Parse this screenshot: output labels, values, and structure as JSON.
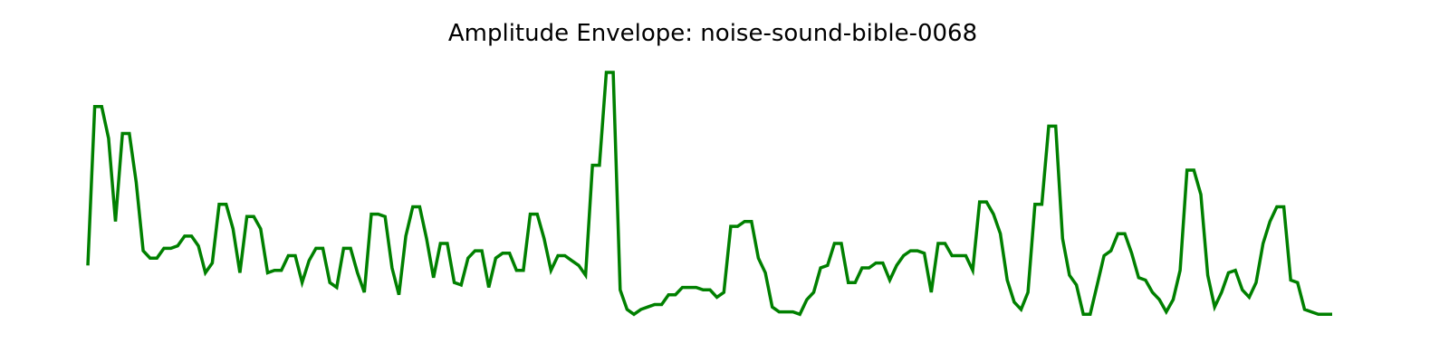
{
  "chart_data": {
    "type": "line",
    "title": "Amplitude Envelope: noise-sound-bible-0068",
    "xlabel": "",
    "ylabel": "",
    "axes_visible": false,
    "grid": false,
    "xlim": [
      0,
      180
    ],
    "ylim": [
      0,
      1
    ],
    "series": [
      {
        "name": "amplitude envelope",
        "color": "#008000",
        "x": [
          0,
          1,
          2,
          3,
          4,
          5,
          6,
          7,
          8,
          9,
          10,
          11,
          12,
          13,
          14,
          15,
          16,
          17,
          18,
          19,
          20,
          21,
          22,
          23,
          24,
          25,
          26,
          27,
          28,
          29,
          30,
          31,
          32,
          33,
          34,
          35,
          36,
          37,
          38,
          39,
          40,
          41,
          42,
          43,
          44,
          45,
          46,
          47,
          48,
          49,
          50,
          51,
          52,
          53,
          54,
          55,
          56,
          57,
          58,
          59,
          60,
          61,
          62,
          63,
          64,
          65,
          66,
          67,
          68,
          69,
          70,
          71,
          72,
          73,
          74,
          75,
          76,
          77,
          78,
          79,
          80,
          81,
          82,
          83,
          84,
          85,
          86,
          87,
          88,
          89,
          90,
          91,
          92,
          93,
          94,
          95,
          96,
          97,
          98,
          99,
          100,
          101,
          102,
          103,
          104,
          105,
          106,
          107,
          108,
          109,
          110,
          111,
          112,
          113,
          114,
          115,
          116,
          117,
          118,
          119,
          120,
          121,
          122,
          123,
          124,
          125,
          126,
          127,
          128,
          129,
          130,
          131,
          132,
          133,
          134,
          135,
          136,
          137,
          138,
          139,
          140,
          141,
          142,
          143,
          144,
          145,
          146,
          147,
          148,
          149,
          150,
          151,
          152,
          153,
          154,
          155,
          156,
          157,
          158,
          159,
          160,
          161,
          162,
          163,
          164,
          165,
          166,
          167,
          168,
          169,
          170,
          171,
          172,
          173,
          174,
          175,
          176,
          177,
          178,
          179,
          180
        ],
        "values": [
          0.21,
          0.86,
          0.86,
          0.73,
          0.39,
          0.75,
          0.75,
          0.55,
          0.27,
          0.24,
          0.24,
          0.28,
          0.28,
          0.29,
          0.33,
          0.33,
          0.29,
          0.18,
          0.22,
          0.46,
          0.46,
          0.36,
          0.18,
          0.41,
          0.41,
          0.36,
          0.18,
          0.19,
          0.19,
          0.25,
          0.25,
          0.14,
          0.23,
          0.28,
          0.28,
          0.14,
          0.12,
          0.28,
          0.28,
          0.18,
          0.1,
          0.42,
          0.42,
          0.41,
          0.2,
          0.09,
          0.33,
          0.45,
          0.45,
          0.32,
          0.16,
          0.3,
          0.3,
          0.14,
          0.13,
          0.24,
          0.27,
          0.27,
          0.12,
          0.24,
          0.26,
          0.26,
          0.19,
          0.19,
          0.42,
          0.42,
          0.32,
          0.19,
          0.25,
          0.25,
          0.23,
          0.21,
          0.17,
          0.62,
          0.62,
          1.0,
          1.0,
          0.11,
          0.03,
          0.01,
          0.03,
          0.04,
          0.05,
          0.05,
          0.09,
          0.09,
          0.12,
          0.12,
          0.12,
          0.11,
          0.11,
          0.08,
          0.1,
          0.37,
          0.37,
          0.39,
          0.39,
          0.24,
          0.18,
          0.04,
          0.02,
          0.02,
          0.02,
          0.01,
          0.07,
          0.1,
          0.2,
          0.21,
          0.3,
          0.3,
          0.14,
          0.14,
          0.2,
          0.2,
          0.22,
          0.22,
          0.15,
          0.21,
          0.25,
          0.27,
          0.27,
          0.26,
          0.1,
          0.3,
          0.3,
          0.25,
          0.25,
          0.25,
          0.19,
          0.47,
          0.47,
          0.42,
          0.34,
          0.15,
          0.06,
          0.03,
          0.1,
          0.46,
          0.46,
          0.78,
          0.78,
          0.32,
          0.17,
          0.13,
          0.01,
          0.01,
          0.13,
          0.25,
          0.27,
          0.34,
          0.34,
          0.26,
          0.16,
          0.15,
          0.1,
          0.07,
          0.02,
          0.07,
          0.19,
          0.6,
          0.6,
          0.5,
          0.17,
          0.04,
          0.1,
          0.18,
          0.19,
          0.11,
          0.08,
          0.14,
          0.3,
          0.39,
          0.45,
          0.45,
          0.15,
          0.14,
          0.03,
          0.02,
          0.01,
          0.01,
          0.01
        ]
      }
    ]
  }
}
